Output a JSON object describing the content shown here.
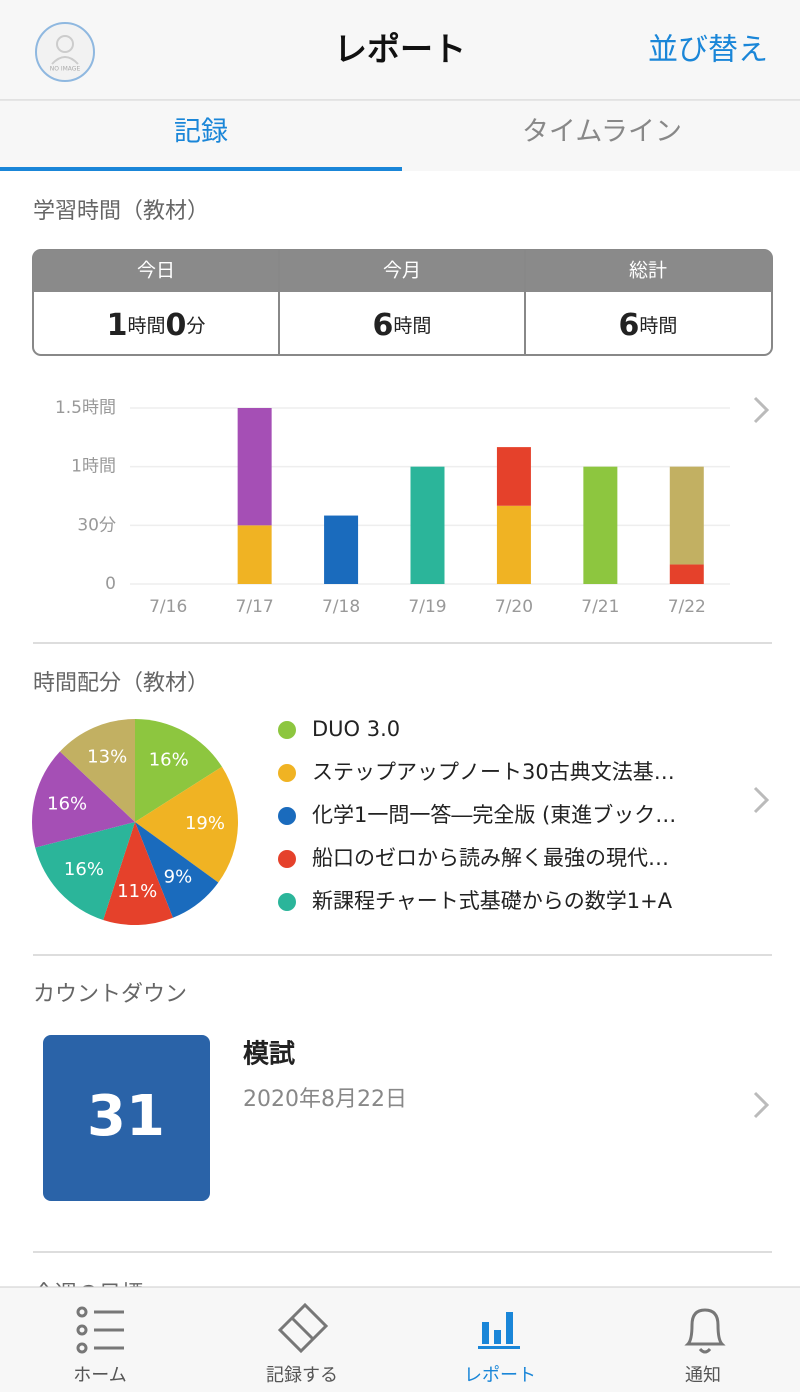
{
  "header": {
    "avatar_text": "NO IMAGE",
    "title": "レポート",
    "action": "並び替え"
  },
  "tabs": [
    "記録",
    "タイムライン"
  ],
  "study_time": {
    "title": "学習時間（教材）",
    "summary": [
      {
        "label": "今日",
        "value": [
          "1",
          "時間",
          "0",
          "分"
        ]
      },
      {
        "label": "今月",
        "value": [
          "6",
          "時間"
        ]
      },
      {
        "label": "総計",
        "value": [
          "6",
          "時間"
        ]
      }
    ]
  },
  "chart_data": [
    {
      "type": "bar",
      "stacked": true,
      "grid": true,
      "categories": [
        "7/16",
        "7/17",
        "7/18",
        "7/19",
        "7/20",
        "7/21",
        "7/22"
      ],
      "series": [
        {
          "color": "#f0b323",
          "values": [
            null,
            30,
            null,
            null,
            40,
            null,
            null
          ]
        },
        {
          "color": "#1a6bbd",
          "values": [
            null,
            null,
            35,
            null,
            null,
            null,
            null
          ]
        },
        {
          "color": "#2bb59a",
          "values": [
            null,
            null,
            null,
            60,
            null,
            null,
            null
          ]
        },
        {
          "color": "#8dc63f",
          "values": [
            null,
            null,
            null,
            null,
            null,
            60,
            null
          ]
        },
        {
          "color": "#e5412b",
          "values": [
            null,
            null,
            null,
            null,
            30,
            null,
            10
          ]
        },
        {
          "color": "#a54fb5",
          "values": [
            null,
            60,
            null,
            null,
            null,
            null,
            null
          ]
        },
        {
          "color": "#c2b062",
          "values": [
            null,
            null,
            null,
            null,
            null,
            null,
            50
          ]
        }
      ],
      "ylim": [
        0,
        90
      ],
      "yticks": [
        0,
        {
          "value": 30,
          "label": "30分"
        },
        {
          "value": 60,
          "label": "1時間"
        },
        {
          "value": 90,
          "label": "1.5時間"
        }
      ]
    },
    {
      "type": "pie",
      "categories": [
        "DUO 3.0",
        "ステップアップノート30古典文法基…",
        "化学1一問一答―完全版 (東進ブック…",
        "船口のゼロから読み解く最強の現代…",
        "新課程チャート式基礎からの数学1+A",
        null,
        null
      ],
      "values": [
        16,
        19,
        9,
        11,
        16,
        16,
        13
      ],
      "value_labels": [
        "16%",
        "19%",
        "9%",
        "11%",
        "16%",
        "16%",
        "13%"
      ],
      "colors": [
        "#8dc63f",
        "#f0b323",
        "#1a6bbd",
        "#e5412b",
        "#2bb59a",
        "#a54fb5",
        "#c2b062"
      ]
    }
  ],
  "allocation": {
    "title": "時間配分（教材）"
  },
  "countdown": {
    "title": "カウントダウン",
    "days": "31",
    "name": "模試",
    "date": "2020年8月22日"
  },
  "next_section": {
    "title": "今週の目標"
  },
  "nav": [
    "ホーム",
    "記録する",
    "レポート",
    "通知"
  ]
}
